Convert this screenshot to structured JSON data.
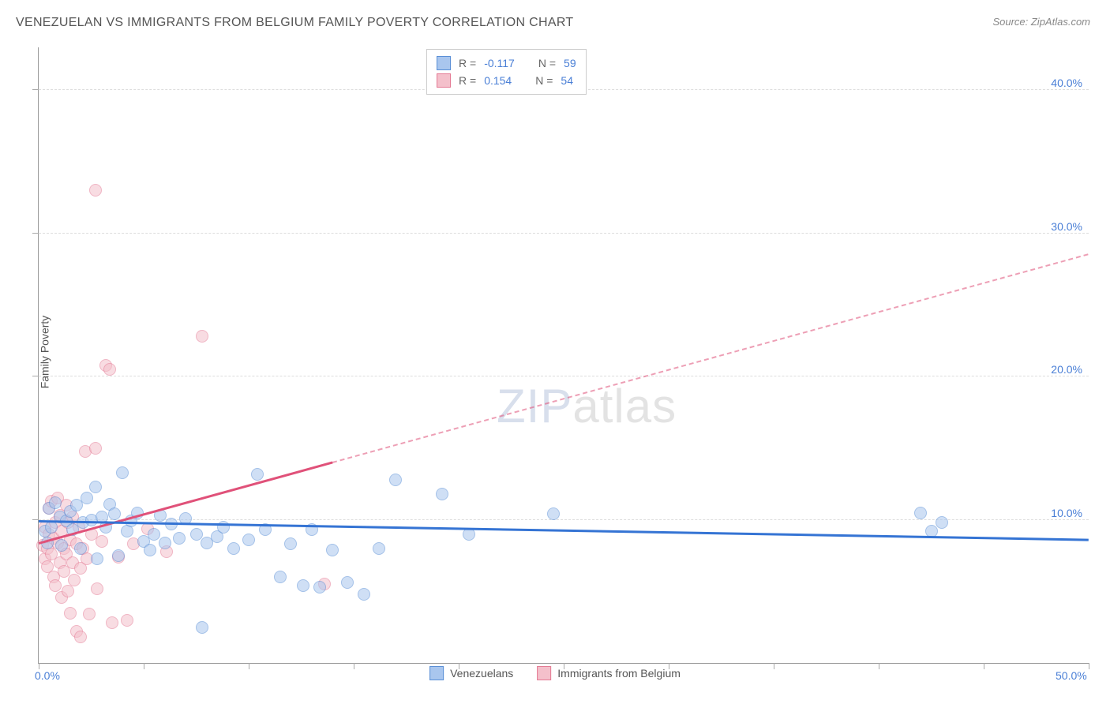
{
  "title": "VENEZUELAN VS IMMIGRANTS FROM BELGIUM FAMILY POVERTY CORRELATION CHART",
  "source": "Source: ZipAtlas.com",
  "watermark": {
    "part1": "ZIP",
    "part2": "atlas"
  },
  "chart": {
    "type": "scatter",
    "ylabel": "Family Poverty",
    "xlim": [
      0,
      50
    ],
    "ylim": [
      0,
      43
    ],
    "xtick_labels": {
      "0": "0.0%",
      "50": "50.0%"
    },
    "ytick_labels": {
      "10": "10.0%",
      "20": "20.0%",
      "30": "30.0%",
      "40": "40.0%"
    },
    "xtick_positions": [
      0,
      5,
      10,
      15,
      20,
      25,
      30,
      35,
      40,
      45,
      50
    ],
    "grid_y": [
      10,
      20,
      30,
      40
    ],
    "background_color": "#ffffff",
    "grid_color": "#dddddd",
    "axis_color": "#999999",
    "tick_label_color": "#4a7fd6",
    "marker_radius": 8,
    "marker_opacity": 0.55
  },
  "series": {
    "venezuelans": {
      "label": "Venezuelans",
      "color_fill": "#a9c6ee",
      "color_stroke": "#5a8fd6",
      "R_label": "R =",
      "R": "-0.117",
      "N_label": "N =",
      "N": "59",
      "trend": {
        "x1": 0,
        "y1": 9.8,
        "x2": 50,
        "y2": 8.5,
        "solid_until_x": 50,
        "color": "#3574d4",
        "width": 3
      },
      "points": [
        [
          0.3,
          9.2
        ],
        [
          0.4,
          8.4
        ],
        [
          0.5,
          10.8
        ],
        [
          0.6,
          9.5
        ],
        [
          0.8,
          11.2
        ],
        [
          1.0,
          10.2
        ],
        [
          1.1,
          8.2
        ],
        [
          1.3,
          9.9
        ],
        [
          1.5,
          10.6
        ],
        [
          1.6,
          9.3
        ],
        [
          1.8,
          11.0
        ],
        [
          2.0,
          8.0
        ],
        [
          2.1,
          9.8
        ],
        [
          2.3,
          11.5
        ],
        [
          2.5,
          10.0
        ],
        [
          2.7,
          12.3
        ],
        [
          2.8,
          7.3
        ],
        [
          3.0,
          10.2
        ],
        [
          3.2,
          9.5
        ],
        [
          3.4,
          11.1
        ],
        [
          3.6,
          10.4
        ],
        [
          3.8,
          7.5
        ],
        [
          4.0,
          13.3
        ],
        [
          4.2,
          9.2
        ],
        [
          4.4,
          9.9
        ],
        [
          4.7,
          10.5
        ],
        [
          5.0,
          8.5
        ],
        [
          5.3,
          7.9
        ],
        [
          5.5,
          9.0
        ],
        [
          5.8,
          10.3
        ],
        [
          6.0,
          8.4
        ],
        [
          6.3,
          9.7
        ],
        [
          6.7,
          8.7
        ],
        [
          7.0,
          10.1
        ],
        [
          7.5,
          9.0
        ],
        [
          7.8,
          2.5
        ],
        [
          8.0,
          8.4
        ],
        [
          8.5,
          8.8
        ],
        [
          8.8,
          9.5
        ],
        [
          9.3,
          8.0
        ],
        [
          10.0,
          8.6
        ],
        [
          10.4,
          13.2
        ],
        [
          10.8,
          9.3
        ],
        [
          11.5,
          6.0
        ],
        [
          12.0,
          8.3
        ],
        [
          12.6,
          5.4
        ],
        [
          13.0,
          9.3
        ],
        [
          13.4,
          5.3
        ],
        [
          14.0,
          7.9
        ],
        [
          14.7,
          5.6
        ],
        [
          15.5,
          4.8
        ],
        [
          16.2,
          8.0
        ],
        [
          17.0,
          12.8
        ],
        [
          19.2,
          11.8
        ],
        [
          20.5,
          9.0
        ],
        [
          24.5,
          10.4
        ],
        [
          42.0,
          10.5
        ],
        [
          43.0,
          9.8
        ],
        [
          42.5,
          9.2
        ]
      ]
    },
    "belgium": {
      "label": "Immigrants from Belgium",
      "color_fill": "#f4c0cb",
      "color_stroke": "#e47a94",
      "R_label": "R =",
      "R": "0.154",
      "N_label": "N =",
      "N": "54",
      "trend": {
        "x1": 0,
        "y1": 8.3,
        "x2": 50,
        "y2": 28.5,
        "solid_until_x": 14,
        "color": "#e05179",
        "width": 2.5
      },
      "points": [
        [
          0.2,
          8.2
        ],
        [
          0.3,
          7.3
        ],
        [
          0.3,
          9.5
        ],
        [
          0.4,
          8.0
        ],
        [
          0.4,
          6.7
        ],
        [
          0.5,
          9.0
        ],
        [
          0.5,
          10.8
        ],
        [
          0.6,
          7.6
        ],
        [
          0.6,
          11.3
        ],
        [
          0.7,
          8.7
        ],
        [
          0.7,
          6.0
        ],
        [
          0.8,
          9.8
        ],
        [
          0.8,
          5.4
        ],
        [
          0.9,
          8.4
        ],
        [
          0.9,
          11.5
        ],
        [
          1.0,
          7.0
        ],
        [
          1.0,
          10.3
        ],
        [
          1.1,
          4.6
        ],
        [
          1.1,
          9.2
        ],
        [
          1.2,
          8.0
        ],
        [
          1.2,
          6.4
        ],
        [
          1.3,
          11.0
        ],
        [
          1.3,
          7.6
        ],
        [
          1.4,
          5.0
        ],
        [
          1.4,
          9.8
        ],
        [
          1.5,
          8.6
        ],
        [
          1.5,
          3.5
        ],
        [
          1.6,
          7.0
        ],
        [
          1.6,
          10.2
        ],
        [
          1.7,
          5.8
        ],
        [
          1.8,
          8.3
        ],
        [
          1.8,
          2.2
        ],
        [
          1.9,
          9.5
        ],
        [
          2.0,
          6.6
        ],
        [
          2.0,
          1.8
        ],
        [
          2.1,
          8.0
        ],
        [
          2.2,
          14.8
        ],
        [
          2.3,
          7.3
        ],
        [
          2.4,
          3.4
        ],
        [
          2.5,
          9.0
        ],
        [
          2.7,
          15.0
        ],
        [
          2.8,
          5.2
        ],
        [
          3.0,
          8.5
        ],
        [
          3.2,
          20.8
        ],
        [
          3.4,
          20.5
        ],
        [
          3.5,
          2.8
        ],
        [
          3.8,
          7.4
        ],
        [
          4.2,
          3.0
        ],
        [
          4.5,
          8.3
        ],
        [
          5.2,
          9.4
        ],
        [
          6.1,
          7.8
        ],
        [
          7.8,
          22.8
        ],
        [
          13.6,
          5.5
        ],
        [
          2.7,
          33.0
        ]
      ]
    }
  }
}
